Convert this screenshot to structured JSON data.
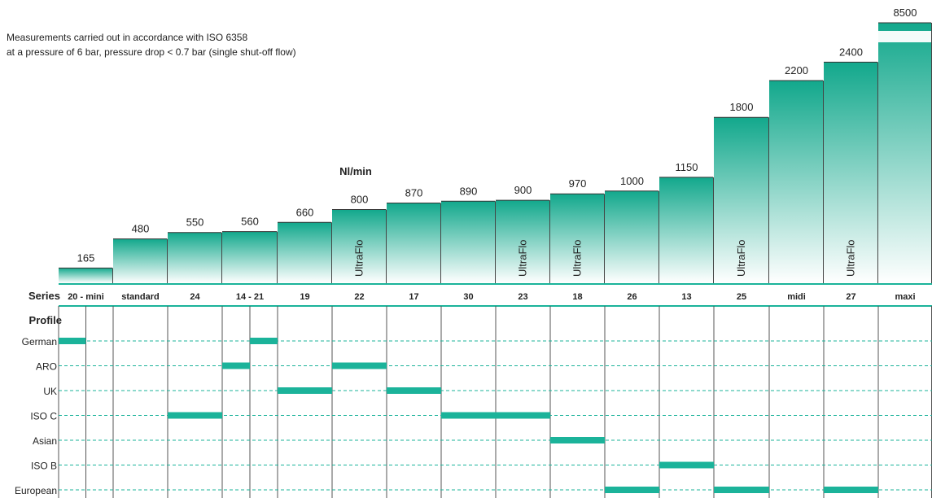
{
  "notes": [
    "Measurements carried out in accordance with ISO 6358",
    "at a pressure of 6 bar, pressure drop < 0.7 bar (single shut-off flow)"
  ],
  "chart_data": {
    "type": "bar",
    "unit_label": "Nl/min",
    "series_row_label": "Series",
    "profile_header_label": "Profile",
    "categories": [
      "20 - mini",
      "standard",
      "24",
      "14 - 21",
      "19",
      "22",
      "17",
      "30",
      "23",
      "18",
      "26",
      "13",
      "25",
      "midi",
      "27",
      "maxi"
    ],
    "values": [
      165,
      480,
      550,
      560,
      660,
      800,
      870,
      890,
      900,
      970,
      1000,
      1150,
      1800,
      2200,
      2400,
      8500
    ],
    "axis_break_above": 2400,
    "bar_inner_labels": [
      {
        "category": "22",
        "text": "UltraFlo"
      },
      {
        "category": "23",
        "text": "UltraFlo"
      },
      {
        "category": "18",
        "text": "UltraFlo"
      },
      {
        "category": "25",
        "text": "UltraFlo"
      },
      {
        "category": "27",
        "text": "UltraFlo"
      }
    ],
    "profiles": [
      {
        "name": "German",
        "segments": [
          {
            "series": "20 - mini",
            "part": "left"
          },
          {
            "series": "14 - 21",
            "part": "right"
          }
        ]
      },
      {
        "name": "ARO",
        "segments": [
          {
            "series": "14 - 21",
            "part": "left"
          },
          {
            "series": "22",
            "part": "full"
          }
        ]
      },
      {
        "name": "UK",
        "segments": [
          {
            "series": "19",
            "part": "full"
          },
          {
            "series": "17",
            "part": "full"
          }
        ]
      },
      {
        "name": "ISO C",
        "segments": [
          {
            "series": "24",
            "part": "full"
          },
          {
            "series": "30",
            "part": "full"
          },
          {
            "series": "23",
            "part": "full"
          }
        ]
      },
      {
        "name": "Asian",
        "segments": [
          {
            "series": "18",
            "part": "full"
          }
        ]
      },
      {
        "name": "ISO B",
        "segments": [
          {
            "series": "13",
            "part": "full"
          }
        ]
      },
      {
        "name": "European",
        "segments": [
          {
            "series": "26",
            "part": "full"
          },
          {
            "series": "25",
            "part": "full"
          },
          {
            "series": "27",
            "part": "full"
          }
        ]
      }
    ],
    "colors": {
      "accent": "#1bb39a",
      "bar_top": "#12a88c",
      "gridline": "#1bb39a",
      "divider": "#555555"
    }
  }
}
